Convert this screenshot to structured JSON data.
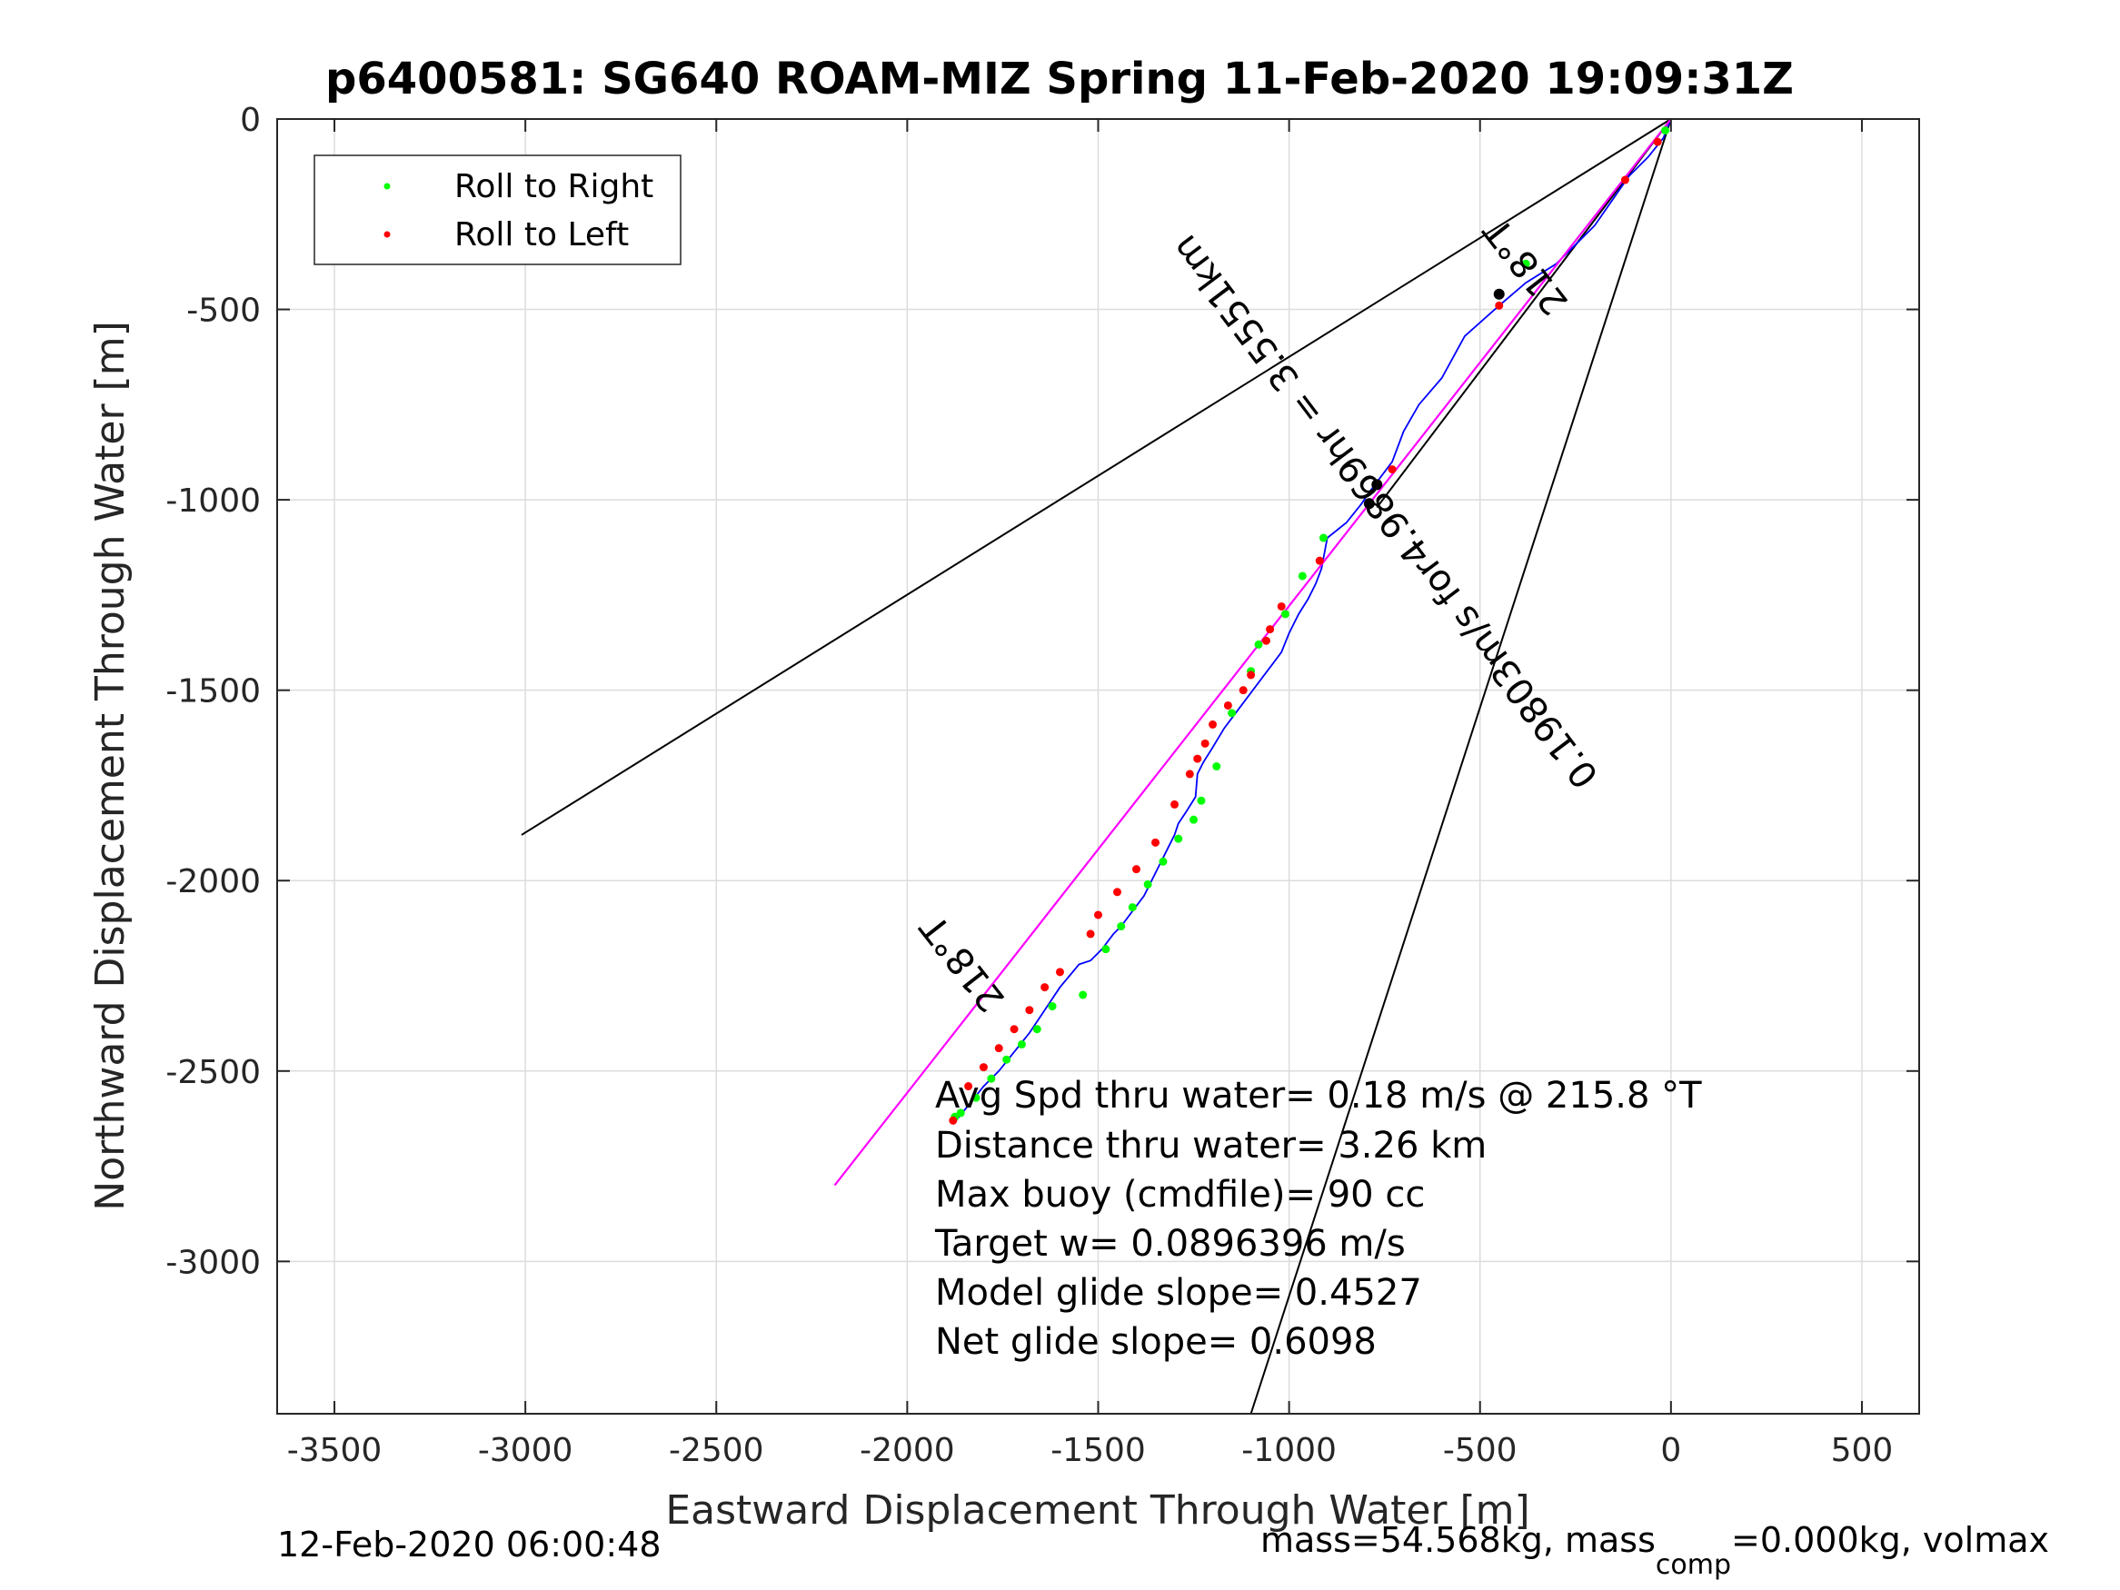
{
  "chart_data": {
    "type": "line",
    "title": "p6400581: SG640 ROAM-MIZ Spring 11-Feb-2020 19:09:31Z",
    "xlabel": "Eastward Displacement Through Water [m]",
    "ylabel": "Northward Displacement Through Water [m]",
    "xlim": [
      -3650,
      650
    ],
    "ylim": [
      -3400,
      0
    ],
    "x_ticks": [
      -3500,
      -3000,
      -2500,
      -2000,
      -1500,
      -1000,
      -500,
      0,
      500
    ],
    "y_ticks": [
      0,
      -500,
      -1000,
      -1500,
      -2000,
      -2500,
      -3000
    ],
    "grid": true,
    "legend_placement": "top-left",
    "legend": [
      {
        "label": "Roll to Right",
        "color": "#00ff00"
      },
      {
        "label": "Roll to Left",
        "color": "#ff0000"
      }
    ],
    "series": [
      {
        "name": "track",
        "color": "#0000ff",
        "x": [
          0,
          -20,
          -60,
          -110,
          -200,
          -300,
          -380,
          -450,
          -540,
          -600,
          -660,
          -700,
          -730,
          -760,
          -790,
          -810,
          -850,
          -900,
          -915,
          -930,
          -950,
          -975,
          -1000,
          -1020,
          -1050,
          -1080,
          -1110,
          -1140,
          -1170,
          -1200,
          -1225,
          -1240,
          -1245,
          -1270,
          -1290,
          -1300,
          -1320,
          -1340,
          -1360,
          -1380,
          -1410,
          -1440,
          -1460,
          -1490,
          -1520,
          -1550,
          -1600,
          -1640,
          -1680,
          -1720,
          -1760,
          -1800,
          -1840,
          -1880
        ],
        "y": [
          0,
          -50,
          -100,
          -150,
          -280,
          -380,
          -430,
          -490,
          -570,
          -680,
          -750,
          -820,
          -900,
          -940,
          -980,
          -1010,
          -1060,
          -1100,
          -1180,
          -1220,
          -1260,
          -1300,
          -1350,
          -1400,
          -1440,
          -1480,
          -1520,
          -1560,
          -1600,
          -1650,
          -1690,
          -1720,
          -1780,
          -1820,
          -1850,
          -1880,
          -1920,
          -1960,
          -2000,
          -2040,
          -2080,
          -2120,
          -2140,
          -2180,
          -2210,
          -2220,
          -2280,
          -2340,
          -2400,
          -2450,
          -2500,
          -2540,
          -2590,
          -2640
        ]
      },
      {
        "name": "heading line",
        "color": "#ff00ff",
        "x": [
          0,
          -2190
        ],
        "y": [
          0,
          -2800
        ]
      }
    ],
    "roll_right_points": {
      "x": [
        -15,
        -380,
        -910,
        -965,
        -1010,
        -1080,
        -1100,
        -1150,
        -1190,
        -1230,
        -1250,
        -1290,
        -1330,
        -1370,
        -1410,
        -1440,
        -1480,
        -1540,
        -1620,
        -1660,
        -1700,
        -1740,
        -1780,
        -1820,
        -1860,
        -1875
      ],
      "y": [
        -30,
        -380,
        -1100,
        -1200,
        -1300,
        -1380,
        -1450,
        -1560,
        -1700,
        -1790,
        -1840,
        -1890,
        -1950,
        -2010,
        -2070,
        -2120,
        -2180,
        -2300,
        -2330,
        -2390,
        -2430,
        -2470,
        -2520,
        -2570,
        -2610,
        -2620
      ]
    },
    "roll_left_points": {
      "x": [
        -35,
        -120,
        -450,
        -730,
        -920,
        -1020,
        -1050,
        -1060,
        -1100,
        -1120,
        -1160,
        -1200,
        -1220,
        -1240,
        -1260,
        -1300,
        -1350,
        -1400,
        -1450,
        -1500,
        -1520,
        -1600,
        -1640,
        -1680,
        -1720,
        -1760,
        -1800,
        -1840,
        -1880
      ],
      "y": [
        -60,
        -160,
        -490,
        -920,
        -1160,
        -1280,
        -1340,
        -1370,
        -1460,
        -1500,
        -1540,
        -1590,
        -1640,
        -1680,
        -1720,
        -1800,
        -1900,
        -1970,
        -2030,
        -2090,
        -2140,
        -2240,
        -2280,
        -2340,
        -2390,
        -2440,
        -2490,
        -2540,
        -2630
      ]
    },
    "reference_lines": [
      {
        "x": [
          0,
          -3010
        ],
        "y": [
          0,
          -1880
        ]
      },
      {
        "x": [
          0,
          -770
        ],
        "y": [
          0,
          -1020
        ]
      },
      {
        "x": [
          0,
          -1100
        ],
        "y": [
          0,
          -3400
        ]
      }
    ],
    "black_markers": [
      {
        "x": -450,
        "y": -460
      },
      {
        "x": -770,
        "y": -960
      },
      {
        "x": -790,
        "y": -1010
      }
    ]
  },
  "annotations": {
    "heading_label_upper": "218°T",
    "heading_label_lower": "218°T",
    "speed_label": "0.19803m/s for4.9869hr = 3.5551km"
  },
  "info_lines": [
    "Avg Spd thru water=  0.18 m/s @ 215.8 °T",
    "Distance thru water=  3.26 km",
    "Max buoy (cmdfile)= 90 cc",
    "Target w= 0.0896396 m/s",
    "Model glide slope= 0.4527",
    "Net glide slope= 0.6098"
  ],
  "footer": {
    "date": "12-Feb-2020 06:00:48",
    "mass_pre": "mass=54.568kg, mass",
    "mass_sub": "comp",
    "mass_post": "=0.000kg, volmax"
  },
  "colors": {
    "track": "#0000ff",
    "heading": "#ff00ff",
    "roll_right": "#00ff00",
    "roll_left": "#ff0000",
    "grid": "#dcdcdc"
  }
}
